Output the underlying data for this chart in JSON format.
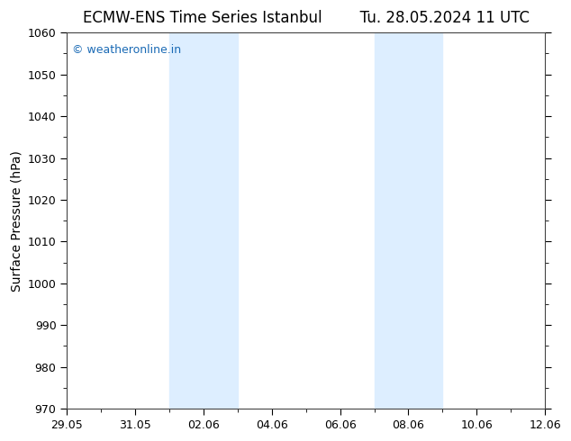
{
  "title": "ECMW-ENS Time Series Istanbul        Tu. 28.05.2024 11 UTC",
  "ylabel": "Surface Pressure (hPa)",
  "ylim": [
    970,
    1060
  ],
  "yticks": [
    970,
    980,
    990,
    1000,
    1010,
    1020,
    1030,
    1040,
    1050,
    1060
  ],
  "x_start_day": 0,
  "x_end_day": 14,
  "xlabel_ticks_days": [
    0,
    2,
    4,
    6,
    8,
    10,
    12,
    14
  ],
  "xlabel_labels": [
    "29.05",
    "31.05",
    "02.06",
    "04.06",
    "06.06",
    "08.06",
    "10.06",
    "12.06"
  ],
  "shaded_regions": [
    {
      "x_start": 3.0,
      "x_end": 5.0
    },
    {
      "x_start": 9.0,
      "x_end": 11.0
    }
  ],
  "shade_color": "#ddeeff",
  "background_color": "#ffffff",
  "watermark_text": "© weatheronline.in",
  "watermark_color": "#1a6ab5",
  "title_fontsize": 12,
  "ylabel_fontsize": 10,
  "tick_fontsize": 9,
  "watermark_fontsize": 9
}
